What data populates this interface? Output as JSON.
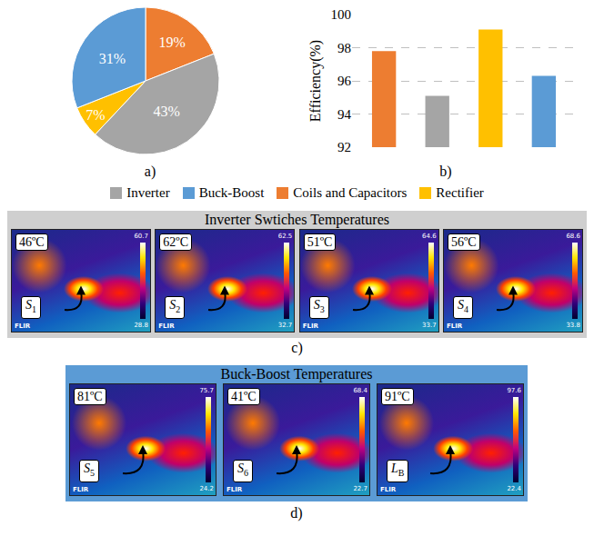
{
  "chart_data": [
    {
      "type": "pie",
      "categories": [
        "Coils and Capacitors",
        "Inverter",
        "Rectifier",
        "Buck-Boost"
      ],
      "values": [
        19,
        43,
        7,
        31
      ],
      "value_labels": [
        "19%",
        "43%",
        "7%",
        "31%"
      ],
      "colors": [
        "#ed7d31",
        "#a5a5a5",
        "#ffc000",
        "#5b9bd5"
      ],
      "data_labels": true,
      "panel_label": "a)"
    },
    {
      "type": "bar",
      "y_label": "Efficiency(%)",
      "categories": [
        null,
        null,
        null,
        null
      ],
      "values": [
        97.8,
        95.1,
        99.1,
        96.3
      ],
      "colors": [
        "#ed7d31",
        "#a5a5a5",
        "#ffc000",
        "#5b9bd5"
      ],
      "ylim": [
        92,
        100
      ],
      "yticks": [
        92,
        94,
        96,
        98,
        100
      ],
      "grid": true,
      "tick_labels": "y",
      "panel_label": "b)"
    }
  ],
  "legend_items": [
    {
      "name": "Inverter",
      "color": "#a5a5a5"
    },
    {
      "name": "Buck-Boost",
      "color": "#5b9bd5"
    },
    {
      "name": "Coils and Capacitors",
      "color": "#ed7d31"
    },
    {
      "name": "Rectifier",
      "color": "#ffc000"
    }
  ],
  "thermal_panels": [
    {
      "panel_label": "c)",
      "title": "Inverter Swtiches Temperatures",
      "color": "#cfcfcf",
      "images": [
        {
          "temperature": "46ºC",
          "symbol": "S",
          "subscript": "1",
          "scale_max": "60.7",
          "scale_min": "28.8",
          "brand": "FLIR"
        },
        {
          "temperature": "62ºC",
          "symbol": "S",
          "subscript": "2",
          "scale_max": "62.5",
          "scale_min": "32.7",
          "brand": "FLIR"
        },
        {
          "temperature": "51ºC",
          "symbol": "S",
          "subscript": "3",
          "scale_max": "64.6",
          "scale_min": "33.7",
          "brand": "FLIR"
        },
        {
          "temperature": "56ºC",
          "symbol": "S",
          "subscript": "4",
          "scale_max": "68.6",
          "scale_min": "33.8",
          "brand": "FLIR"
        }
      ]
    },
    {
      "panel_label": "d)",
      "title": "Buck-Boost Temperatures",
      "color": "#5b9bd5",
      "images": [
        {
          "temperature": "81ºC",
          "symbol": "S",
          "subscript": "5",
          "scale_max": "75.7",
          "scale_min": "24.2",
          "brand": "FLIR"
        },
        {
          "temperature": "41ºC",
          "symbol": "S",
          "subscript": "6",
          "scale_max": "68.4",
          "scale_min": "22.7",
          "brand": "FLIR"
        },
        {
          "temperature": "91ºC",
          "symbol": "L",
          "subscript": "B",
          "scale_max": "97.6",
          "scale_min": "22.4",
          "brand": "FLIR"
        }
      ]
    }
  ]
}
